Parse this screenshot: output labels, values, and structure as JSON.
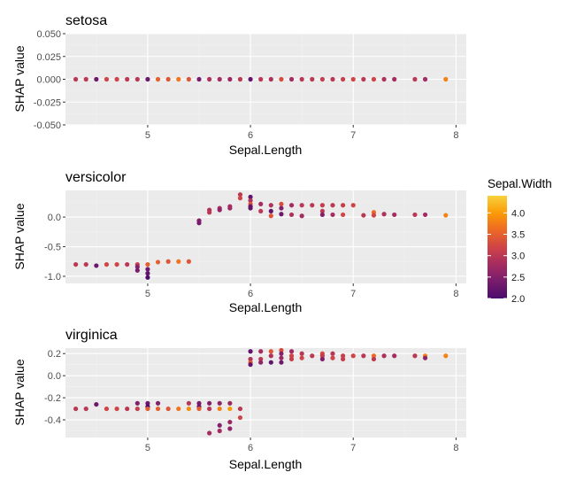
{
  "chart_data": [
    {
      "type": "scatter",
      "title": "setosa",
      "xlabel": "Sepal.Length",
      "ylabel": "SHAP value",
      "xlim": [
        4.2,
        8.1
      ],
      "ylim": [
        -0.05,
        0.05
      ],
      "xticks": [
        5,
        6,
        7,
        8
      ],
      "xtick_labels": [
        "5",
        "6",
        "7",
        "8"
      ],
      "yticks": [
        0.05,
        0.025,
        0,
        -0.025,
        -0.05
      ],
      "ytick_labels": [
        "0.050",
        "0.025",
        "0.000",
        "-0.025",
        "-0.050"
      ],
      "grid": true,
      "points": [
        [
          4.3,
          0.0,
          3.0
        ],
        [
          4.4,
          0.0,
          3.0
        ],
        [
          4.5,
          0.0,
          2.3
        ],
        [
          4.6,
          0.0,
          3.2
        ],
        [
          4.7,
          0.0,
          3.2
        ],
        [
          4.8,
          0.0,
          3.0
        ],
        [
          4.9,
          0.0,
          3.0
        ],
        [
          5.0,
          0.0,
          2.3
        ],
        [
          5.1,
          0.0,
          3.5
        ],
        [
          5.2,
          0.0,
          3.4
        ],
        [
          5.3,
          0.0,
          3.7
        ],
        [
          5.4,
          0.0,
          3.4
        ],
        [
          5.5,
          0.0,
          2.4
        ],
        [
          5.6,
          0.0,
          2.9
        ],
        [
          5.7,
          0.0,
          2.8
        ],
        [
          5.8,
          0.0,
          2.7
        ],
        [
          5.9,
          0.0,
          3.0
        ],
        [
          6.0,
          0.0,
          2.2
        ],
        [
          6.1,
          0.0,
          3.0
        ],
        [
          6.2,
          0.0,
          2.9
        ],
        [
          6.3,
          0.0,
          3.3
        ],
        [
          6.4,
          0.0,
          2.8
        ],
        [
          6.5,
          0.0,
          3.0
        ],
        [
          6.6,
          0.0,
          3.0
        ],
        [
          6.7,
          0.0,
          3.1
        ],
        [
          6.8,
          0.0,
          3.0
        ],
        [
          6.9,
          0.0,
          3.1
        ],
        [
          7.0,
          0.0,
          3.2
        ],
        [
          7.1,
          0.0,
          3.0
        ],
        [
          7.2,
          0.0,
          3.2
        ],
        [
          7.3,
          0.0,
          2.9
        ],
        [
          7.4,
          0.0,
          2.8
        ],
        [
          7.6,
          0.0,
          3.0
        ],
        [
          7.7,
          0.0,
          2.8
        ],
        [
          7.9,
          0.0,
          3.8
        ]
      ]
    },
    {
      "type": "scatter",
      "title": "versicolor",
      "xlabel": "Sepal.Length",
      "ylabel": "SHAP value",
      "xlim": [
        4.2,
        8.1
      ],
      "ylim": [
        -1.12,
        0.45
      ],
      "xticks": [
        5,
        6,
        7,
        8
      ],
      "xtick_labels": [
        "5",
        "6",
        "7",
        "8"
      ],
      "yticks": [
        0.0,
        -0.5,
        -1.0
      ],
      "ytick_labels": [
        "0.0",
        "-0.5",
        "-1.0"
      ],
      "grid": true,
      "points": [
        [
          4.3,
          -0.8,
          3.0
        ],
        [
          4.4,
          -0.8,
          3.0
        ],
        [
          4.5,
          -0.82,
          2.3
        ],
        [
          4.6,
          -0.8,
          3.2
        ],
        [
          4.7,
          -0.8,
          3.2
        ],
        [
          4.8,
          -0.8,
          3.0
        ],
        [
          4.9,
          -0.8,
          3.1
        ],
        [
          4.9,
          -0.84,
          2.5
        ],
        [
          5.0,
          -0.8,
          3.5
        ],
        [
          5.0,
          -0.88,
          2.3
        ],
        [
          5.0,
          -0.95,
          2.2
        ],
        [
          5.0,
          -1.02,
          2.0
        ],
        [
          4.9,
          -0.9,
          2.4
        ],
        [
          5.1,
          -0.76,
          3.5
        ],
        [
          5.2,
          -0.75,
          3.4
        ],
        [
          5.3,
          -0.75,
          3.7
        ],
        [
          5.4,
          -0.75,
          3.4
        ],
        [
          5.5,
          -0.06,
          2.5
        ],
        [
          5.5,
          -0.1,
          2.4
        ],
        [
          5.6,
          0.12,
          2.9
        ],
        [
          5.6,
          0.08,
          3.0
        ],
        [
          5.7,
          0.15,
          2.8
        ],
        [
          5.7,
          0.12,
          2.6
        ],
        [
          5.8,
          0.15,
          2.7
        ],
        [
          5.8,
          0.18,
          2.8
        ],
        [
          5.9,
          0.38,
          3.0
        ],
        [
          5.9,
          0.32,
          3.2
        ],
        [
          6.0,
          0.34,
          2.2
        ],
        [
          6.0,
          0.28,
          2.9
        ],
        [
          6.0,
          0.22,
          3.4
        ],
        [
          6.0,
          0.18,
          2.2
        ],
        [
          6.0,
          0.15,
          2.2
        ],
        [
          6.1,
          0.22,
          2.8
        ],
        [
          6.1,
          0.1,
          3.0
        ],
        [
          6.2,
          0.2,
          2.9
        ],
        [
          6.2,
          0.1,
          2.2
        ],
        [
          6.2,
          0.02,
          3.4
        ],
        [
          6.3,
          0.22,
          3.3
        ],
        [
          6.3,
          0.15,
          2.5
        ],
        [
          6.3,
          0.05,
          2.3
        ],
        [
          6.4,
          0.2,
          2.8
        ],
        [
          6.4,
          0.04,
          2.9
        ],
        [
          6.5,
          0.2,
          3.0
        ],
        [
          6.5,
          0.02,
          2.8
        ],
        [
          6.6,
          0.2,
          3.0
        ],
        [
          6.7,
          0.2,
          3.1
        ],
        [
          6.7,
          0.1,
          3.0
        ],
        [
          6.7,
          0.04,
          2.5
        ],
        [
          6.8,
          0.2,
          3.0
        ],
        [
          6.8,
          0.04,
          2.8
        ],
        [
          6.9,
          0.2,
          3.1
        ],
        [
          6.9,
          0.04,
          3.2
        ],
        [
          7.0,
          0.2,
          3.2
        ],
        [
          7.1,
          0.03,
          3.0
        ],
        [
          7.2,
          0.08,
          3.6
        ],
        [
          7.2,
          0.03,
          3.2
        ],
        [
          7.3,
          0.05,
          2.9
        ],
        [
          7.4,
          0.04,
          2.8
        ],
        [
          7.6,
          0.04,
          3.0
        ],
        [
          7.7,
          0.04,
          2.8
        ],
        [
          7.9,
          0.03,
          3.8
        ]
      ]
    },
    {
      "type": "scatter",
      "title": "virginica",
      "xlabel": "Sepal.Length",
      "ylabel": "SHAP value",
      "xlim": [
        4.2,
        8.1
      ],
      "ylim": [
        -0.56,
        0.25
      ],
      "xticks": [
        5,
        6,
        7,
        8
      ],
      "xtick_labels": [
        "5",
        "6",
        "7",
        "8"
      ],
      "yticks": [
        0.2,
        0.0,
        -0.2,
        -0.4
      ],
      "ytick_labels": [
        "0.2",
        "0.0",
        "-0.2",
        "-0.4"
      ],
      "grid": true,
      "points": [
        [
          4.3,
          -0.3,
          3.0
        ],
        [
          4.4,
          -0.3,
          3.0
        ],
        [
          4.5,
          -0.26,
          2.3
        ],
        [
          4.6,
          -0.3,
          3.2
        ],
        [
          4.7,
          -0.3,
          3.2
        ],
        [
          4.8,
          -0.3,
          3.0
        ],
        [
          4.9,
          -0.25,
          2.5
        ],
        [
          4.9,
          -0.3,
          3.1
        ],
        [
          5.0,
          -0.25,
          2.3
        ],
        [
          5.0,
          -0.28,
          2.0
        ],
        [
          5.0,
          -0.3,
          3.5
        ],
        [
          5.1,
          -0.25,
          2.5
        ],
        [
          5.1,
          -0.3,
          3.5
        ],
        [
          5.2,
          -0.3,
          3.4
        ],
        [
          5.3,
          -0.3,
          3.7
        ],
        [
          5.4,
          -0.25,
          3.0
        ],
        [
          5.4,
          -0.3,
          3.9
        ],
        [
          5.5,
          -0.25,
          2.4
        ],
        [
          5.5,
          -0.28,
          2.3
        ],
        [
          5.5,
          -0.3,
          3.5
        ],
        [
          5.6,
          -0.25,
          2.5
        ],
        [
          5.6,
          -0.3,
          3.0
        ],
        [
          5.6,
          -0.52,
          2.8
        ],
        [
          5.7,
          -0.25,
          2.6
        ],
        [
          5.7,
          -0.3,
          3.8
        ],
        [
          5.7,
          -0.45,
          2.5
        ],
        [
          5.7,
          -0.5,
          2.8
        ],
        [
          5.8,
          -0.25,
          2.7
        ],
        [
          5.8,
          -0.3,
          4.0
        ],
        [
          5.8,
          -0.42,
          2.7
        ],
        [
          5.8,
          -0.48,
          2.6
        ],
        [
          5.9,
          -0.3,
          3.0
        ],
        [
          5.9,
          -0.38,
          3.2
        ],
        [
          6.0,
          0.22,
          2.2
        ],
        [
          6.0,
          0.15,
          2.9
        ],
        [
          6.0,
          0.12,
          3.4
        ],
        [
          6.0,
          0.1,
          2.2
        ],
        [
          6.1,
          0.22,
          2.8
        ],
        [
          6.1,
          0.15,
          3.0
        ],
        [
          6.1,
          0.12,
          2.6
        ],
        [
          6.2,
          0.22,
          3.4
        ],
        [
          6.2,
          0.18,
          2.9
        ],
        [
          6.2,
          0.12,
          2.2
        ],
        [
          6.3,
          0.23,
          3.3
        ],
        [
          6.3,
          0.2,
          2.5
        ],
        [
          6.3,
          0.16,
          2.7
        ],
        [
          6.3,
          0.12,
          2.3
        ],
        [
          6.4,
          0.22,
          2.8
        ],
        [
          6.4,
          0.18,
          3.2
        ],
        [
          6.4,
          0.15,
          3.1
        ],
        [
          6.5,
          0.2,
          3.0
        ],
        [
          6.5,
          0.16,
          3.2
        ],
        [
          6.6,
          0.18,
          3.0
        ],
        [
          6.7,
          0.2,
          3.3
        ],
        [
          6.7,
          0.18,
          3.1
        ],
        [
          6.7,
          0.15,
          2.5
        ],
        [
          6.8,
          0.2,
          3.0
        ],
        [
          6.8,
          0.16,
          3.2
        ],
        [
          6.9,
          0.18,
          3.1
        ],
        [
          6.9,
          0.15,
          3.1
        ],
        [
          7.0,
          0.18,
          3.2
        ],
        [
          7.1,
          0.18,
          3.0
        ],
        [
          7.2,
          0.18,
          3.6
        ],
        [
          7.2,
          0.15,
          3.0
        ],
        [
          7.3,
          0.18,
          2.9
        ],
        [
          7.4,
          0.18,
          2.8
        ],
        [
          7.6,
          0.18,
          3.0
        ],
        [
          7.7,
          0.18,
          3.8
        ],
        [
          7.7,
          0.16,
          2.6
        ],
        [
          7.9,
          0.18,
          3.8
        ]
      ]
    }
  ],
  "legend": {
    "title": "Sepal.Width",
    "min": 2.0,
    "max": 4.4,
    "ticks": [
      4.0,
      3.5,
      3.0,
      2.5,
      2.0
    ],
    "tick_labels": [
      "4.0",
      "3.5",
      "3.0",
      "2.5",
      "2.0"
    ],
    "colors": [
      "#4b0c6b",
      "#781c6d",
      "#a52c60",
      "#cf4446",
      "#ed6925",
      "#fb9b06",
      "#f7d13d"
    ]
  },
  "colors": {
    "panel_bg": "#ebebeb",
    "grid_major": "#ffffff",
    "grid_minor": "#f2f2f2"
  }
}
